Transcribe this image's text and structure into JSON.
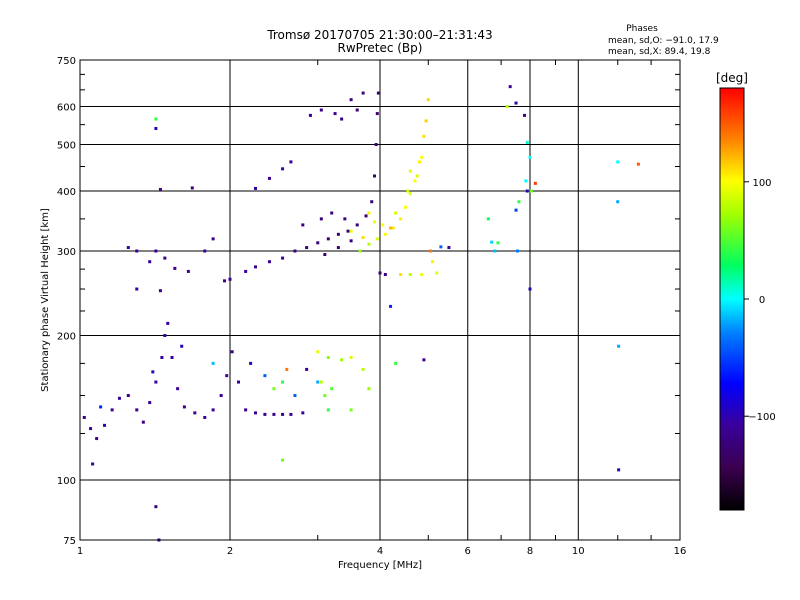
{
  "chart_data": {
    "type": "scatter",
    "title": "Tromsø 20170705 21:30:00–21:31:43",
    "subtitle": "RwPretec (Bp)",
    "xlabel": "Frequency [MHz]",
    "ylabel": "Stationary phase Virtual Height [km]",
    "x_scale": "log",
    "y_scale": "log",
    "xlim": [
      1,
      16
    ],
    "ylim": [
      75,
      750
    ],
    "x_ticks": [
      1,
      2,
      4,
      6,
      8,
      10,
      16
    ],
    "x_tick_labels": [
      "1",
      "2",
      "4",
      "6",
      "8",
      "10",
      "16"
    ],
    "y_ticks": [
      75,
      100,
      200,
      300,
      400,
      500,
      600,
      750
    ],
    "y_tick_labels": [
      "75",
      "100",
      "200",
      "300",
      "400",
      "500",
      "600",
      "750"
    ],
    "grid": true,
    "grid_x": [
      2,
      4,
      6,
      8,
      10
    ],
    "grid_y": [
      100,
      200,
      300,
      400,
      500,
      600
    ],
    "phase_box": {
      "heading": "Phases",
      "line_o": "mean, sd,O: −91.0, 17.9",
      "line_x": "mean, sd,X:  89.4, 19.8"
    },
    "colorbar": {
      "label": "[deg]",
      "range": [
        -180,
        180
      ],
      "ticks": [
        100,
        0,
        -100
      ],
      "tick_labels": [
        "100",
        "0",
        "−100"
      ]
    },
    "series": [
      {
        "trace": "lower-layer",
        "points": [
          [
            1.02,
            135,
            -120
          ],
          [
            1.05,
            128,
            -110
          ],
          [
            1.08,
            122,
            -115
          ],
          [
            1.12,
            130,
            -105
          ],
          [
            1.16,
            140,
            -110
          ],
          [
            1.2,
            148,
            -108
          ],
          [
            1.25,
            150,
            -112
          ],
          [
            1.3,
            140,
            -115
          ],
          [
            1.34,
            132,
            -118
          ],
          [
            1.38,
            145,
            -110
          ],
          [
            1.42,
            160,
            -108
          ],
          [
            1.46,
            180,
            -105
          ],
          [
            1.48,
            200,
            -104
          ],
          [
            1.5,
            212,
            -102
          ],
          [
            1.53,
            180,
            -105
          ],
          [
            1.57,
            155,
            -110
          ],
          [
            1.62,
            142,
            -112
          ],
          [
            1.7,
            138,
            -115
          ],
          [
            1.78,
            135,
            -110
          ],
          [
            1.85,
            140,
            -108
          ],
          [
            1.92,
            150,
            -105
          ],
          [
            1.97,
            165,
            -108
          ],
          [
            2.02,
            185,
            -110
          ],
          [
            2.08,
            160,
            -106
          ],
          [
            2.15,
            140,
            -110
          ],
          [
            2.25,
            138,
            -108
          ],
          [
            2.35,
            137,
            -112
          ],
          [
            2.45,
            137,
            -115
          ],
          [
            2.55,
            137,
            -118
          ],
          [
            2.65,
            137,
            -110
          ],
          [
            2.8,
            138,
            -108
          ],
          [
            2.2,
            175,
            -100
          ],
          [
            2.35,
            165,
            -40
          ],
          [
            2.45,
            155,
            60
          ],
          [
            2.55,
            160,
            40
          ],
          [
            2.7,
            150,
            -40
          ],
          [
            2.85,
            170,
            -110
          ],
          [
            3.05,
            160,
            80
          ],
          [
            3.1,
            150,
            60
          ],
          [
            3.2,
            155,
            50
          ],
          [
            3.35,
            178,
            70
          ],
          [
            3.5,
            180,
            90
          ],
          [
            3.7,
            170,
            80
          ],
          [
            3.8,
            155,
            70
          ],
          [
            3.0,
            185,
            95
          ],
          [
            3.15,
            140,
            40
          ],
          [
            3.5,
            140,
            60
          ],
          [
            1.1,
            142,
            -60
          ],
          [
            1.4,
            168,
            -100
          ],
          [
            1.6,
            190,
            -95
          ]
        ]
      },
      {
        "trace": "upper-layer",
        "points": [
          [
            1.25,
            305,
            -105
          ],
          [
            1.3,
            300,
            -110
          ],
          [
            1.38,
            285,
            -108
          ],
          [
            1.42,
            300,
            -112
          ],
          [
            1.48,
            290,
            -115
          ],
          [
            1.55,
            276,
            -110
          ],
          [
            1.65,
            272,
            -112
          ],
          [
            1.78,
            300,
            -108
          ],
          [
            1.85,
            318,
            -110
          ],
          [
            1.95,
            260,
            -112
          ],
          [
            2.0,
            262,
            -115
          ],
          [
            2.15,
            272,
            -110
          ],
          [
            2.25,
            278,
            -108
          ],
          [
            2.4,
            285,
            -110
          ],
          [
            2.55,
            290,
            -112
          ],
          [
            2.7,
            300,
            -115
          ],
          [
            2.85,
            305,
            -118
          ],
          [
            3.0,
            312,
            -125
          ],
          [
            3.15,
            318,
            -128
          ],
          [
            3.3,
            325,
            -130
          ],
          [
            3.45,
            330,
            -128
          ],
          [
            3.6,
            340,
            -125
          ],
          [
            3.75,
            355,
            -130
          ],
          [
            3.85,
            380,
            -128
          ],
          [
            3.9,
            430,
            -125
          ],
          [
            3.93,
            500,
            -128
          ],
          [
            3.95,
            580,
            -130
          ],
          [
            3.97,
            640,
            -128
          ],
          [
            3.1,
            295,
            -130
          ],
          [
            3.3,
            305,
            -132
          ],
          [
            3.5,
            315,
            -125
          ],
          [
            2.8,
            340,
            -120
          ],
          [
            3.05,
            350,
            -125
          ],
          [
            3.2,
            360,
            -122
          ],
          [
            3.4,
            350,
            -118
          ],
          [
            2.25,
            405,
            -105
          ],
          [
            2.4,
            425,
            -110
          ],
          [
            2.55,
            445,
            -108
          ],
          [
            2.65,
            460,
            -112
          ],
          [
            1.45,
            248,
            -110
          ],
          [
            1.3,
            250,
            -105
          ],
          [
            2.9,
            575,
            -110
          ],
          [
            3.05,
            590,
            -115
          ],
          [
            3.25,
            580,
            -112
          ],
          [
            3.5,
            620,
            -118
          ],
          [
            3.7,
            640,
            -122
          ],
          [
            3.35,
            565,
            -120
          ],
          [
            3.6,
            590,
            -125
          ],
          [
            4.0,
            270,
            -128
          ],
          [
            4.1,
            268,
            -115
          ]
        ]
      },
      {
        "trace": "x-mode",
        "points": [
          [
            3.65,
            300,
            70
          ],
          [
            3.8,
            310,
            80
          ],
          [
            3.95,
            318,
            90
          ],
          [
            4.1,
            325,
            100
          ],
          [
            4.25,
            335,
            110
          ],
          [
            4.4,
            350,
            105
          ],
          [
            4.5,
            370,
            100
          ],
          [
            4.6,
            395,
            95
          ],
          [
            4.7,
            420,
            100
          ],
          [
            4.8,
            460,
            105
          ],
          [
            4.9,
            520,
            110
          ],
          [
            4.95,
            560,
            115
          ],
          [
            5.0,
            620,
            112
          ],
          [
            3.9,
            345,
            95
          ],
          [
            4.05,
            340,
            100
          ],
          [
            4.3,
            360,
            90
          ],
          [
            4.55,
            400,
            85
          ],
          [
            4.75,
            430,
            90
          ],
          [
            4.2,
            335,
            120
          ],
          [
            3.8,
            360,
            105
          ],
          [
            4.4,
            268,
            110
          ],
          [
            4.6,
            268,
            80
          ],
          [
            4.85,
            268,
            95
          ],
          [
            5.1,
            285,
            105
          ],
          [
            5.2,
            270,
            90
          ],
          [
            4.6,
            440,
            95
          ],
          [
            4.85,
            470,
            100
          ],
          [
            5.05,
            300,
            140
          ],
          [
            3.5,
            330,
            95
          ],
          [
            3.7,
            320,
            110
          ]
        ]
      },
      {
        "trace": "scattered",
        "points": [
          [
            1.42,
            565,
            40
          ],
          [
            1.42,
            540,
            -100
          ],
          [
            1.45,
            403,
            -110
          ],
          [
            1.68,
            406,
            -120
          ],
          [
            1.42,
            88,
            -120
          ],
          [
            1.44,
            75,
            -110
          ],
          [
            1.06,
            108,
            -100
          ],
          [
            2.55,
            110,
            60
          ],
          [
            3.15,
            180,
            65
          ],
          [
            4.9,
            178,
            -110
          ],
          [
            5.5,
            305,
            -110
          ],
          [
            6.6,
            350,
            30
          ],
          [
            6.7,
            313,
            -10
          ],
          [
            6.9,
            312,
            40
          ],
          [
            7.3,
            660,
            -110
          ],
          [
            7.2,
            600,
            80
          ],
          [
            7.5,
            610,
            -100
          ],
          [
            7.8,
            575,
            -120
          ],
          [
            7.9,
            505,
            10
          ],
          [
            8.0,
            470,
            0
          ],
          [
            7.85,
            420,
            0
          ],
          [
            7.9,
            400,
            -100
          ],
          [
            8.05,
            400,
            60
          ],
          [
            8.2,
            415,
            160
          ],
          [
            7.5,
            365,
            -50
          ],
          [
            7.55,
            300,
            -30
          ],
          [
            8.0,
            250,
            -100
          ],
          [
            7.6,
            380,
            40
          ],
          [
            12.0,
            460,
            0
          ],
          [
            12.0,
            380,
            -20
          ],
          [
            12.05,
            190,
            -20
          ],
          [
            12.05,
            105,
            -100
          ],
          [
            13.2,
            455,
            150
          ],
          [
            5.3,
            306,
            -40
          ],
          [
            4.2,
            230,
            -60
          ],
          [
            3.0,
            160,
            -20
          ],
          [
            1.85,
            175,
            -15
          ],
          [
            2.6,
            170,
            140
          ],
          [
            4.3,
            175,
            40
          ],
          [
            6.8,
            300,
            -15
          ]
        ]
      }
    ]
  }
}
